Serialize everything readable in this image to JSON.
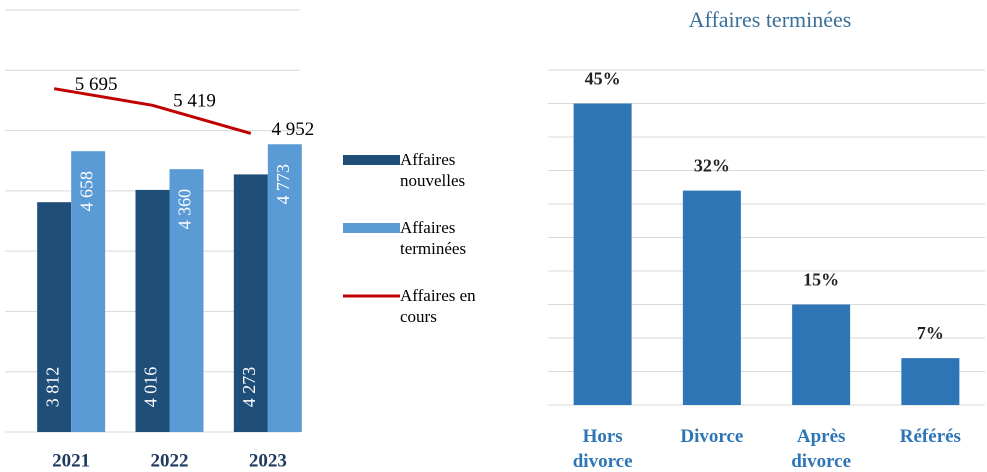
{
  "chart_data": [
    {
      "type": "bar",
      "categories": [
        "2021",
        "2022",
        "2023"
      ],
      "series": [
        {
          "name": "Affaires nouvelles",
          "color": "#1f4e79",
          "values": [
            3812,
            4016,
            4273
          ],
          "value_labels": [
            "3 812",
            "4 016",
            "4 273"
          ]
        },
        {
          "name": "Affaires terminées",
          "color": "#5b9bd5",
          "values": [
            4658,
            4360,
            4773
          ],
          "value_labels": [
            "4 658",
            "4 360",
            "4 773"
          ]
        },
        {
          "name": "Affaires en cours",
          "type": "line",
          "color": "#c00000",
          "values": [
            5695,
            5419,
            4952
          ],
          "value_labels": [
            "5 695",
            "5 419",
            "4 952"
          ]
        }
      ],
      "ylim": [
        0,
        7000
      ],
      "yticks": [
        0,
        1000,
        2000,
        3000,
        4000,
        5000,
        6000,
        7000
      ],
      "grid": true,
      "legend": "right"
    },
    {
      "type": "bar",
      "title": "Affaires terminées",
      "categories": [
        "Hors divorce",
        "Divorce",
        "Après divorce",
        "Référés"
      ],
      "values": [
        45,
        32,
        15,
        7
      ],
      "value_labels": [
        "45%",
        "32%",
        "15%",
        "7%"
      ],
      "color": "#2e75b6",
      "ylim": [
        0,
        50
      ],
      "yticks": [
        0,
        5,
        10,
        15,
        20,
        25,
        30,
        35,
        40,
        45,
        50
      ],
      "grid": true
    }
  ]
}
